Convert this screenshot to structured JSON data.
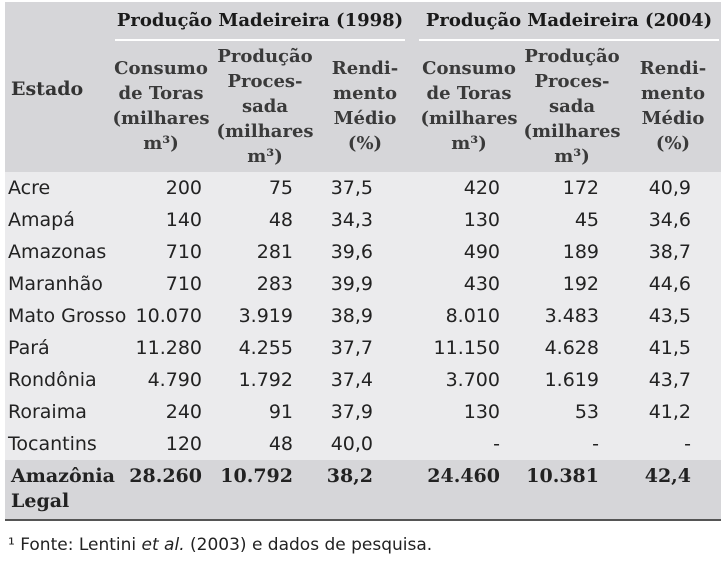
{
  "table": {
    "group_1998": "Produção Madeireira (1998)",
    "group_2004": "Produção Madeireira (2004)",
    "estado_header": "Estado",
    "col_consumo": "Consumo\nde Toras\n(milhares\nm³)",
    "col_producao": "Produção\nProces-\nsada\n(milhares\nm³)",
    "col_rendimento": "Rendi-\nmento\nMédio\n(%)",
    "rows": [
      {
        "estado": "Acre",
        "c98": "200",
        "p98": "75",
        "r98": "37,5",
        "c04": "420",
        "p04": "172",
        "r04": "40,9"
      },
      {
        "estado": "Amapá",
        "c98": "140",
        "p98": "48",
        "r98": "34,3",
        "c04": "130",
        "p04": "45",
        "r04": "34,6"
      },
      {
        "estado": "Amazonas",
        "c98": "710",
        "p98": "281",
        "r98": "39,6",
        "c04": "490",
        "p04": "189",
        "r04": "38,7"
      },
      {
        "estado": "Maranhão",
        "c98": "710",
        "p98": "283",
        "r98": "39,9",
        "c04": "430",
        "p04": "192",
        "r04": "44,6"
      },
      {
        "estado": "Mato Grosso",
        "c98": "10.070",
        "p98": "3.919",
        "r98": "38,9",
        "c04": "8.010",
        "p04": "3.483",
        "r04": "43,5"
      },
      {
        "estado": "Pará",
        "c98": "11.280",
        "p98": "4.255",
        "r98": "37,7",
        "c04": "11.150",
        "p04": "4.628",
        "r04": "41,5"
      },
      {
        "estado": "Rondônia",
        "c98": "4.790",
        "p98": "1.792",
        "r98": "37,4",
        "c04": "3.700",
        "p04": "1.619",
        "r04": "43,7"
      },
      {
        "estado": "Roraima",
        "c98": "240",
        "p98": "91",
        "r98": "37,9",
        "c04": "130",
        "p04": "53",
        "r04": "41,2"
      },
      {
        "estado": "Tocantins",
        "c98": "120",
        "p98": "48",
        "r98": "40,0",
        "c04": "-",
        "p04": "-",
        "r04": "-"
      }
    ],
    "total": {
      "estado": "Amazônia\nLegal",
      "c98": "28.260",
      "p98": "10.792",
      "r98": "38,2",
      "c04": "24.460",
      "p04": "10.381",
      "r04": "42,4"
    }
  },
  "footnote": {
    "marker": "¹",
    "before": " Fonte: Lentini ",
    "italic": "et al.",
    "after": " (2003) e dados de pesquisa."
  }
}
